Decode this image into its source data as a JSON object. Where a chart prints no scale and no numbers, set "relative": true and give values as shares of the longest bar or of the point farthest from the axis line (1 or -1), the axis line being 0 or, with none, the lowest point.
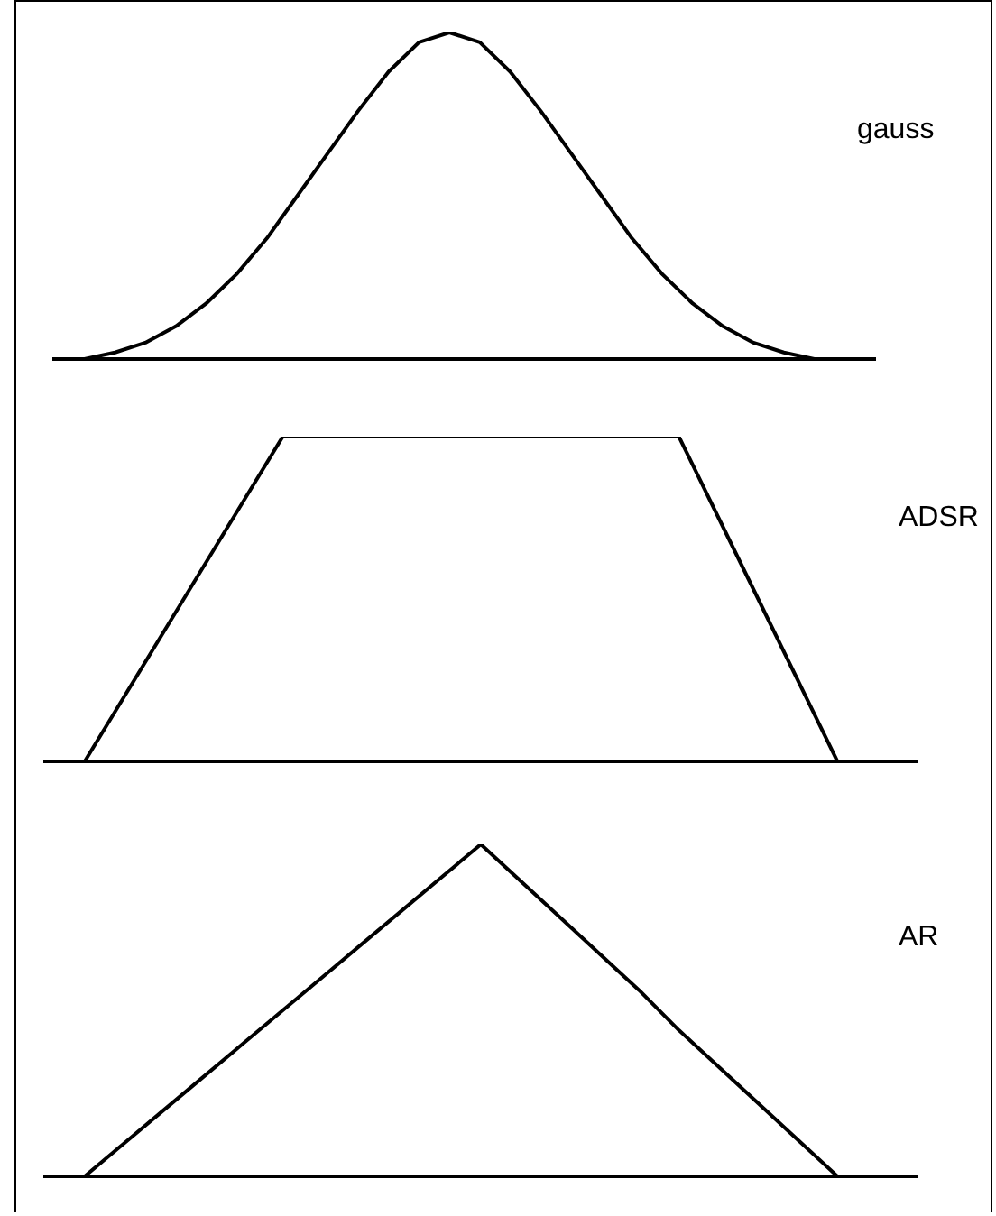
{
  "chart_data": [
    {
      "type": "line",
      "relative": true,
      "marker": "none",
      "line_style": "solid",
      "categories": [
        null,
        null,
        null,
        null,
        null,
        null,
        null,
        null,
        null,
        null,
        null,
        null,
        null,
        null,
        null,
        null,
        null,
        null,
        null,
        null,
        null,
        null,
        null,
        null,
        null,
        null,
        null,
        null
      ],
      "series": [
        {
          "name": "gauss",
          "color": "#000000",
          "values": [
            null,
            0,
            0.02,
            0.05,
            0.1,
            0.17,
            0.26,
            0.37,
            0.5,
            0.63,
            0.76,
            0.88,
            0.97,
            1,
            0.97,
            0.88,
            0.76,
            0.63,
            0.5,
            0.37,
            0.26,
            0.17,
            0.1,
            0.05,
            0.02,
            0,
            null,
            null
          ]
        }
      ]
    },
    {
      "type": "line",
      "relative": true,
      "marker": "none",
      "line_style": "solid",
      "categories": [
        null,
        null,
        null,
        null,
        null,
        null,
        null,
        null,
        null,
        null,
        null,
        null,
        null,
        null,
        null,
        null,
        null,
        null,
        null,
        null,
        null,
        null,
        null
      ],
      "series": [
        {
          "name": "ADSR",
          "color": "#000000",
          "values": [
            null,
            0,
            0.2,
            0.4,
            0.6,
            0.8,
            1,
            1,
            1,
            1,
            1,
            1,
            1,
            1,
            1,
            1,
            1,
            0.75,
            0.5,
            0.25,
            0,
            null,
            null
          ]
        }
      ]
    },
    {
      "type": "line",
      "relative": true,
      "marker": "none",
      "line_style": "solid",
      "categories": [
        null,
        null,
        null,
        null,
        null,
        null,
        null,
        null,
        null,
        null,
        null,
        null,
        null,
        null,
        null,
        null,
        null,
        null,
        null,
        null,
        null,
        null,
        null
      ],
      "series": [
        {
          "name": "AR",
          "color": "#000000",
          "values": [
            null,
            0,
            0.1,
            0.2,
            0.3,
            0.4,
            0.5,
            0.6,
            0.7,
            0.8,
            0.9,
            1,
            0.89,
            0.78,
            0.67,
            0.56,
            0.44,
            0.33,
            0.22,
            0.11,
            0,
            null,
            null
          ]
        }
      ]
    }
  ]
}
